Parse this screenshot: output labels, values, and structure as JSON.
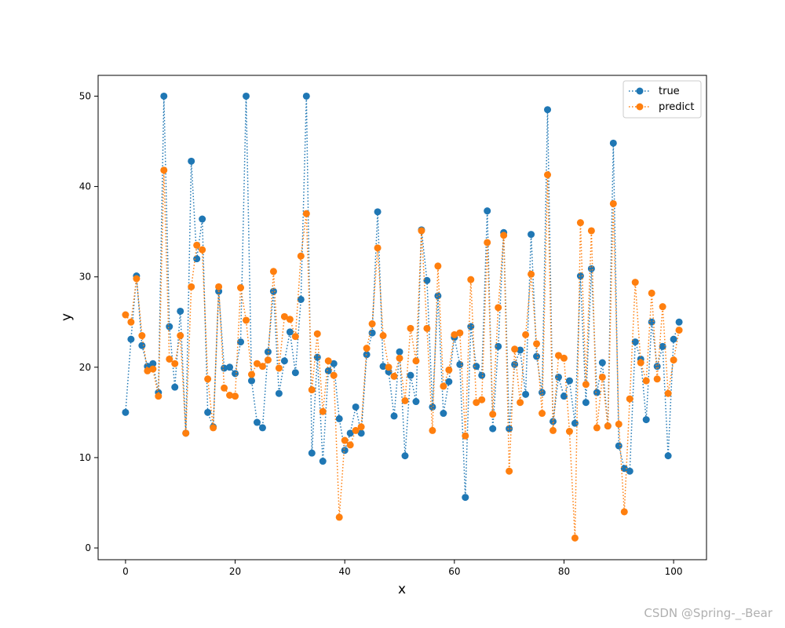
{
  "chart_data": {
    "type": "line",
    "title": "",
    "xlabel": "x",
    "ylabel": "y",
    "xlim": [
      -5,
      106
    ],
    "ylim": [
      -1.3,
      52.3
    ],
    "xticks": [
      0,
      20,
      40,
      60,
      80,
      100
    ],
    "yticks": [
      0,
      10,
      20,
      30,
      40,
      50
    ],
    "grid": false,
    "legend_position": "top-right",
    "line_style": "dotted",
    "marker": "circle",
    "series": [
      {
        "name": "true",
        "color": "#1f77b4",
        "values": [
          15.0,
          23.1,
          30.1,
          22.4,
          20.1,
          20.4,
          17.2,
          50.0,
          24.5,
          17.8,
          26.2,
          12.7,
          42.8,
          32.0,
          36.4,
          15.0,
          13.4,
          28.4,
          19.9,
          20.0,
          19.3,
          22.8,
          50.0,
          18.5,
          13.9,
          13.3,
          21.7,
          28.4,
          17.1,
          20.7,
          23.9,
          19.4,
          27.5,
          50.0,
          10.5,
          21.1,
          9.6,
          19.6,
          20.4,
          14.3,
          10.8,
          12.7,
          15.6,
          12.7,
          21.4,
          23.8,
          37.2,
          20.1,
          19.5,
          14.6,
          21.7,
          10.2,
          19.1,
          16.2,
          35.2,
          29.6,
          15.6,
          27.9,
          14.9,
          18.4,
          23.3,
          20.3,
          5.6,
          24.5,
          20.1,
          19.1,
          37.3,
          13.2,
          22.3,
          34.9,
          13.2,
          20.3,
          21.9,
          17.0,
          34.7,
          21.2,
          17.2,
          48.5,
          14.0,
          18.9,
          16.8,
          18.5,
          13.8,
          30.1,
          16.1,
          30.9,
          17.2,
          20.5,
          13.5,
          44.8,
          11.3,
          8.8,
          8.5,
          22.8,
          20.9,
          14.2,
          25.0,
          20.1,
          22.3,
          10.2,
          23.1,
          25.0
        ]
      },
      {
        "name": "predict",
        "color": "#ff7f0e",
        "values": [
          25.8,
          25.0,
          29.8,
          23.5,
          19.6,
          19.8,
          16.8,
          41.8,
          20.9,
          20.4,
          23.5,
          12.7,
          28.9,
          33.5,
          33.0,
          18.7,
          13.3,
          28.9,
          17.7,
          16.9,
          16.8,
          28.8,
          25.2,
          19.2,
          20.4,
          20.1,
          20.8,
          30.6,
          19.9,
          25.6,
          25.3,
          23.4,
          32.3,
          37.0,
          17.5,
          23.7,
          15.1,
          20.7,
          19.1,
          3.4,
          11.9,
          11.4,
          13.0,
          13.4,
          22.1,
          24.8,
          33.2,
          23.5,
          20.0,
          19.0,
          21.0,
          16.3,
          24.3,
          20.7,
          35.1,
          24.3,
          13.0,
          31.2,
          17.9,
          19.7,
          23.6,
          23.8,
          12.4,
          29.7,
          16.1,
          16.4,
          33.8,
          14.8,
          26.6,
          34.6,
          8.5,
          22.0,
          16.1,
          23.6,
          30.3,
          22.6,
          14.9,
          41.3,
          13.0,
          21.3,
          21.0,
          12.9,
          1.1,
          36.0,
          18.1,
          35.1,
          13.3,
          18.9,
          13.5,
          38.1,
          13.7,
          4.0,
          16.5,
          29.4,
          20.5,
          18.5,
          28.2,
          18.7,
          26.7,
          17.1,
          20.8,
          24.1
        ]
      }
    ]
  },
  "watermark": "CSDN @Spring-_-Bear"
}
